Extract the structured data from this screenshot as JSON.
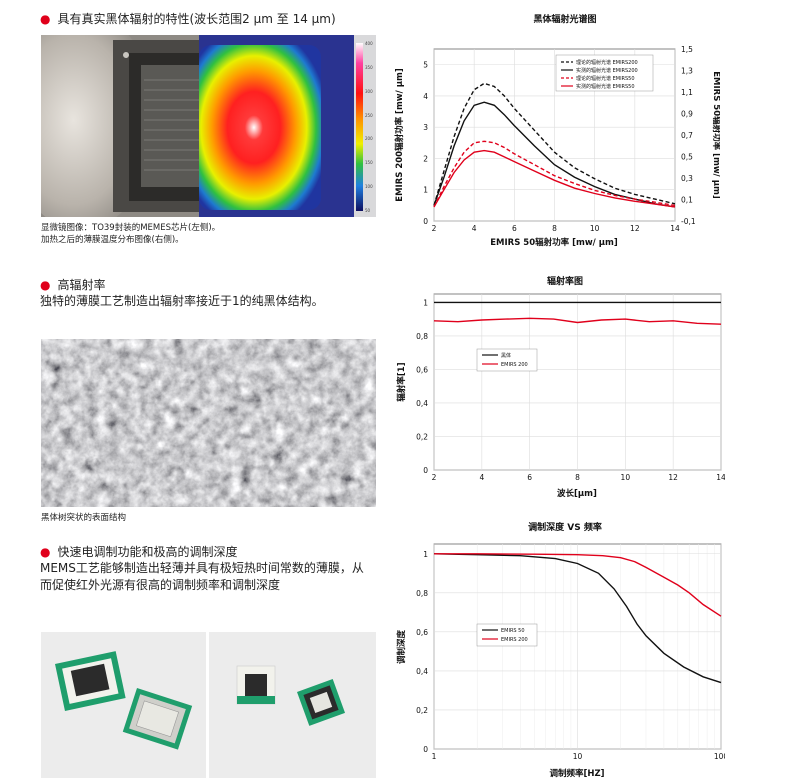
{
  "section1": {
    "heading": "具有真实黑体辐射的特性(波长范围2 μm 至 14 μm)",
    "caption_line1": "显微镜图像：TO39封装的MEMES芯片(左侧)。",
    "caption_line2": "加热之后的薄膜温度分布图像(右侧)。",
    "colorbar_ticks": [
      "400",
      "350",
      "300",
      "250",
      "200",
      "150",
      "100",
      "50"
    ]
  },
  "section2": {
    "heading": "高辐射率",
    "text": "独特的薄膜工艺制造出辐射率接近于1的纯黑体结构。",
    "caption": "黑体树突状的表面结构"
  },
  "section3": {
    "heading": "快速电调制功能和极高的调制深度",
    "text_line1": "MEMS工艺能够制造出轻薄并具有极短热时间常数的薄膜，从",
    "text_line2": "而促使红外光源有很高的调制频率和调制深度"
  },
  "colors": {
    "accent_red": "#e0001b",
    "black": "#111111"
  },
  "chart_data": [
    {
      "type": "line",
      "title": "黑体辐射光谱图",
      "xlabel": "EMIRS 50辐射功率 [mw/ μm]",
      "ylabel": "EMIRS 200辐射功率 [mw/ μm]",
      "y2label": "EMIRS 50辐射功率 [mw/ μm]",
      "xlim": [
        2,
        14
      ],
      "ylim": [
        0,
        5.5
      ],
      "y2lim": [
        -0.1,
        1.5
      ],
      "xticks": [
        "2",
        "4",
        "6",
        "8",
        "10",
        "12",
        "14"
      ],
      "yticks": [
        "0",
        "1",
        "2",
        "3",
        "4",
        "5"
      ],
      "y2ticks": [
        "-0,1",
        "0,1",
        "0,3",
        "0,5",
        "0,7",
        "0,9",
        "1,1",
        "1,3",
        "1,5"
      ],
      "legend_position": "top-right",
      "series": [
        {
          "name": "理论的辐射光谱 EMIRS200",
          "color": "#111111",
          "dash": true,
          "x": [
            2,
            2.5,
            3,
            3.5,
            4,
            4.5,
            5,
            5.5,
            6,
            7,
            8,
            9,
            10,
            11,
            12,
            13,
            14
          ],
          "y": [
            0.5,
            1.6,
            2.7,
            3.6,
            4.2,
            4.4,
            4.3,
            4.0,
            3.6,
            2.9,
            2.2,
            1.7,
            1.35,
            1.05,
            0.85,
            0.7,
            0.55
          ]
        },
        {
          "name": "实测的辐射光谱 EMIRS200",
          "color": "#111111",
          "dash": false,
          "x": [
            2,
            2.5,
            3,
            3.5,
            4,
            4.5,
            5,
            5.5,
            6,
            7,
            8,
            9,
            10,
            11,
            12,
            13,
            14
          ],
          "y": [
            0.5,
            1.4,
            2.4,
            3.2,
            3.7,
            3.8,
            3.7,
            3.4,
            3.05,
            2.4,
            1.8,
            1.4,
            1.1,
            0.85,
            0.7,
            0.55,
            0.45
          ]
        },
        {
          "name": "理论的辐射光谱 EMIRS50",
          "color": "#e0001b",
          "dash": true,
          "x": [
            2,
            2.5,
            3,
            3.5,
            4,
            4.5,
            5,
            5.5,
            6,
            7,
            8,
            9,
            10,
            11,
            12,
            13,
            14
          ],
          "y": [
            0.45,
            1.1,
            1.7,
            2.2,
            2.5,
            2.55,
            2.5,
            2.35,
            2.15,
            1.8,
            1.45,
            1.2,
            0.98,
            0.82,
            0.7,
            0.6,
            0.5
          ]
        },
        {
          "name": "实测的辐射光谱 EMIRS50",
          "color": "#e0001b",
          "dash": false,
          "x": [
            2,
            2.5,
            3,
            3.5,
            4,
            4.5,
            5,
            5.5,
            6,
            7,
            8,
            9,
            10,
            11,
            12,
            13,
            14
          ],
          "y": [
            0.45,
            1.0,
            1.55,
            1.95,
            2.2,
            2.25,
            2.2,
            2.05,
            1.9,
            1.6,
            1.3,
            1.05,
            0.88,
            0.74,
            0.63,
            0.54,
            0.45
          ]
        }
      ]
    },
    {
      "type": "line",
      "title": "辐射率图",
      "xlabel": "波长[μm]",
      "ylabel": "辐射率[1]",
      "xlim": [
        2,
        14
      ],
      "ylim": [
        0,
        1.05
      ],
      "xticks": [
        "2",
        "4",
        "6",
        "8",
        "10",
        "12",
        "14"
      ],
      "yticks": [
        "0",
        "0,2",
        "0,4",
        "0,6",
        "0,8",
        "1"
      ],
      "legend_position": "center-left",
      "series": [
        {
          "name": "黑体",
          "color": "#111111",
          "x": [
            2,
            14
          ],
          "y": [
            1.0,
            1.0
          ]
        },
        {
          "name": "EMIRS 200",
          "color": "#e0001b",
          "x": [
            2,
            3,
            4,
            5,
            6,
            7,
            8,
            9,
            10,
            11,
            12,
            13,
            14
          ],
          "y": [
            0.89,
            0.885,
            0.895,
            0.9,
            0.905,
            0.9,
            0.88,
            0.895,
            0.9,
            0.885,
            0.89,
            0.875,
            0.87
          ]
        }
      ]
    },
    {
      "type": "line",
      "title": "调制深度 VS 频率",
      "xlabel": "调制频率[HZ]",
      "ylabel": "调制深度",
      "xscale": "log",
      "xlim": [
        1,
        100
      ],
      "ylim": [
        0,
        1.05
      ],
      "xticks": [
        "1",
        "10",
        "100"
      ],
      "yticks": [
        "0",
        "0,2",
        "0,4",
        "0,6",
        "0,8",
        "1"
      ],
      "legend_position": "center-left",
      "series": [
        {
          "name": "EMIRS 50",
          "color": "#111111",
          "x": [
            1,
            2,
            4,
            7,
            10,
            14,
            18,
            22,
            26,
            30,
            40,
            55,
            75,
            100
          ],
          "y": [
            1.0,
            0.995,
            0.99,
            0.975,
            0.95,
            0.9,
            0.82,
            0.73,
            0.64,
            0.58,
            0.49,
            0.42,
            0.37,
            0.34
          ]
        },
        {
          "name": "EMIRS 200",
          "color": "#e0001b",
          "x": [
            1,
            2,
            5,
            10,
            15,
            20,
            25,
            30,
            40,
            50,
            60,
            75,
            100
          ],
          "y": [
            1.0,
            1.0,
            0.998,
            0.995,
            0.99,
            0.98,
            0.96,
            0.93,
            0.88,
            0.84,
            0.8,
            0.74,
            0.68
          ]
        }
      ]
    }
  ]
}
